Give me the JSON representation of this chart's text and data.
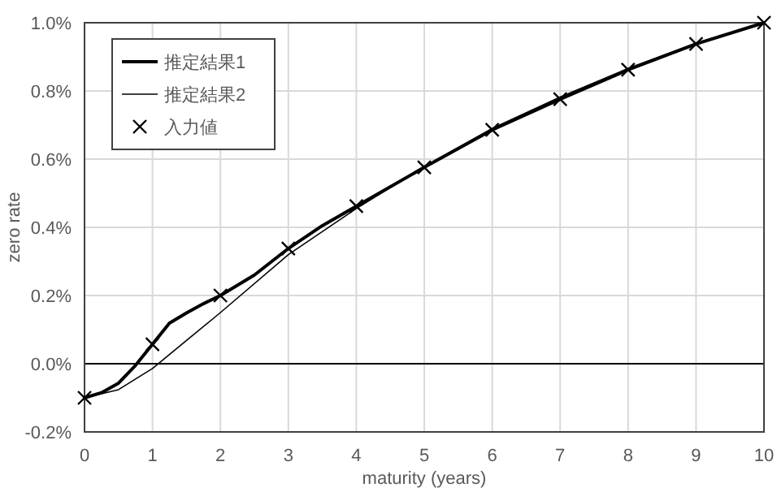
{
  "chart_data": {
    "type": "line",
    "xlabel": "maturity (years)",
    "ylabel": "zero rate",
    "xlim": [
      0,
      10
    ],
    "xticks": [
      0,
      1,
      2,
      3,
      4,
      5,
      6,
      7,
      8,
      9,
      10
    ],
    "ylim": [
      -0.2,
      1.0
    ],
    "yticks": [
      {
        "value": -0.2,
        "label": "-0.2%"
      },
      {
        "value": 0.0,
        "label": "0.0%"
      },
      {
        "value": 0.2,
        "label": "0.2%"
      },
      {
        "value": 0.4,
        "label": "0.4%"
      },
      {
        "value": 0.6,
        "label": "0.6%"
      },
      {
        "value": 0.8,
        "label": "0.8%"
      },
      {
        "value": 1.0,
        "label": "1.0%"
      }
    ],
    "grid": true,
    "legend": "top left",
    "ref_lines": [
      {
        "axis": "y",
        "value": 0,
        "color": "#000000"
      }
    ],
    "series": [
      {
        "name": "推定結果1",
        "color": "#000000",
        "line_style": "solid",
        "marker": "none",
        "x": [
          0,
          0.25,
          0.5,
          0.75,
          1,
          1.25,
          1.5,
          1.75,
          2,
          2.5,
          3,
          3.5,
          4,
          5,
          6,
          7,
          8,
          9,
          10
        ],
        "values": [
          -0.1,
          -0.085,
          -0.057,
          -0.005,
          0.057,
          0.119,
          0.149,
          0.176,
          0.2,
          0.26,
          0.338,
          0.405,
          0.462,
          0.576,
          0.686,
          0.776,
          0.862,
          0.938,
          1.0
        ]
      },
      {
        "name": "推定結果2",
        "color": "#000000",
        "line_style": "solid",
        "marker": "none",
        "x": [
          0,
          0.5,
          1,
          1.5,
          2,
          3,
          4,
          5,
          6,
          7,
          8,
          9,
          10
        ],
        "values": [
          -0.1,
          -0.076,
          -0.014,
          0.068,
          0.15,
          0.32,
          0.455,
          0.578,
          0.69,
          0.782,
          0.866,
          0.94,
          1.0
        ]
      },
      {
        "name": "入力値",
        "type": "scatter",
        "color": "#000000",
        "marker": "cross",
        "x": [
          0,
          1,
          2,
          3,
          4,
          5,
          6,
          7,
          8,
          9,
          10
        ],
        "values": [
          -0.1,
          0.057,
          0.2,
          0.338,
          0.462,
          0.576,
          0.686,
          0.776,
          0.862,
          0.938,
          1.0
        ]
      }
    ]
  }
}
